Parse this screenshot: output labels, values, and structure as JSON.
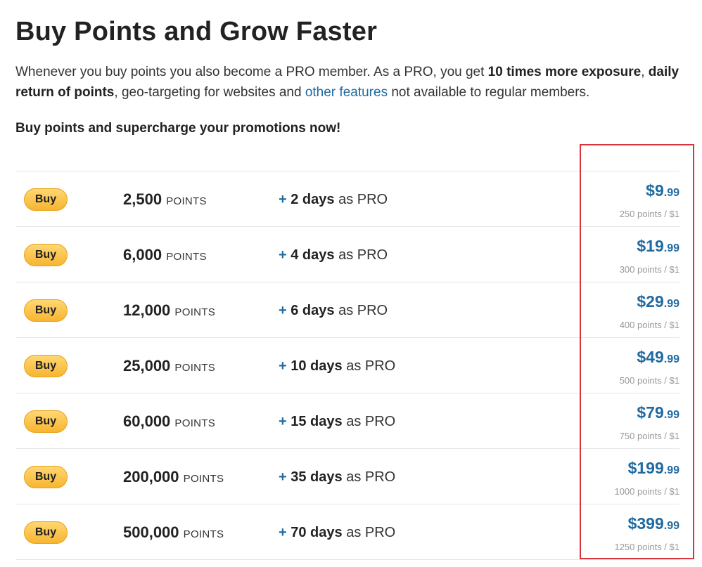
{
  "page": {
    "title": "Buy Points and Grow Faster",
    "intro": {
      "part1": "Whenever you buy points you also become a PRO member. As a PRO, you get ",
      "bold1": "10 times more exposure",
      "part2": ", ",
      "bold2": "daily return of points",
      "part3": ", geo-targeting for websites and ",
      "link": "other features",
      "part4": " not available to regular members."
    },
    "cta": "Buy points and supercharge your promotions now!",
    "buy_label": "Buy",
    "points_unit": "POINTS",
    "pro_plus": "+",
    "pro_suffix": " as PRO",
    "packages": [
      {
        "points": "2,500",
        "days": "2 days",
        "price_main": "$9",
        "price_cents": ".99",
        "rate": "250 points / $1"
      },
      {
        "points": "6,000",
        "days": "4 days",
        "price_main": "$19",
        "price_cents": ".99",
        "rate": "300 points / $1"
      },
      {
        "points": "12,000",
        "days": "6 days",
        "price_main": "$29",
        "price_cents": ".99",
        "rate": "400 points / $1"
      },
      {
        "points": "25,000",
        "days": "10 days",
        "price_main": "$49",
        "price_cents": ".99",
        "rate": "500 points / $1"
      },
      {
        "points": "60,000",
        "days": "15 days",
        "price_main": "$79",
        "price_cents": ".99",
        "rate": "750 points / $1"
      },
      {
        "points": "200,000",
        "days": "35 days",
        "price_main": "$199",
        "price_cents": ".99",
        "rate": "1000 points / $1"
      },
      {
        "points": "500,000",
        "days": "70 days",
        "price_main": "$399",
        "price_cents": ".99",
        "rate": "1250 points / $1"
      }
    ],
    "colors": {
      "accent": "#1f6aa0",
      "button": "#f7b530",
      "highlight": "#d9343b"
    }
  }
}
